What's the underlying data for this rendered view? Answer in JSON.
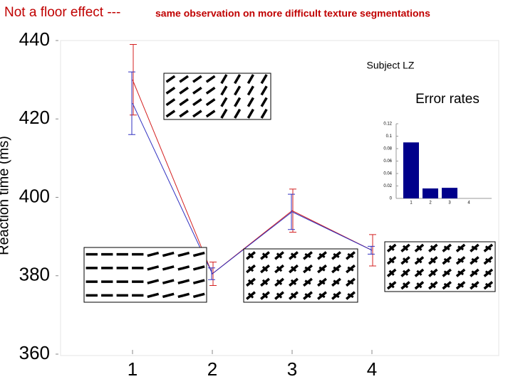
{
  "chart_data": [
    {
      "type": "line",
      "title": "Not a floor effect ---",
      "subtitle": "same observation on more difficult texture segmentations",
      "ylabel": "Reaction time (ms)",
      "annotation": "Subject LZ",
      "categories": [
        "1",
        "2",
        "3",
        "4"
      ],
      "series": [
        {
          "color": "#d42020",
          "values": [
            430,
            380.5,
            396.6,
            386.5
          ],
          "errors": [
            9,
            3,
            5.5,
            4
          ]
        },
        {
          "color": "#3030c0",
          "values": [
            424,
            380.5,
            396.3,
            386.5
          ],
          "errors": [
            8,
            1.5,
            4.5,
            1
          ]
        }
      ],
      "ylim": [
        360,
        440
      ],
      "yticks": [
        360,
        380,
        400,
        420,
        440
      ]
    },
    {
      "type": "bar",
      "title": "Error rates",
      "categories": [
        "1",
        "2",
        "3",
        "4"
      ],
      "values": [
        0.09,
        0.016,
        0.017,
        0
      ],
      "color": "#00008b",
      "ylim": [
        0,
        0.12
      ],
      "yticks": [
        0,
        0.02,
        0.04,
        0.06,
        0.08,
        0.1,
        0.12
      ]
    }
  ]
}
